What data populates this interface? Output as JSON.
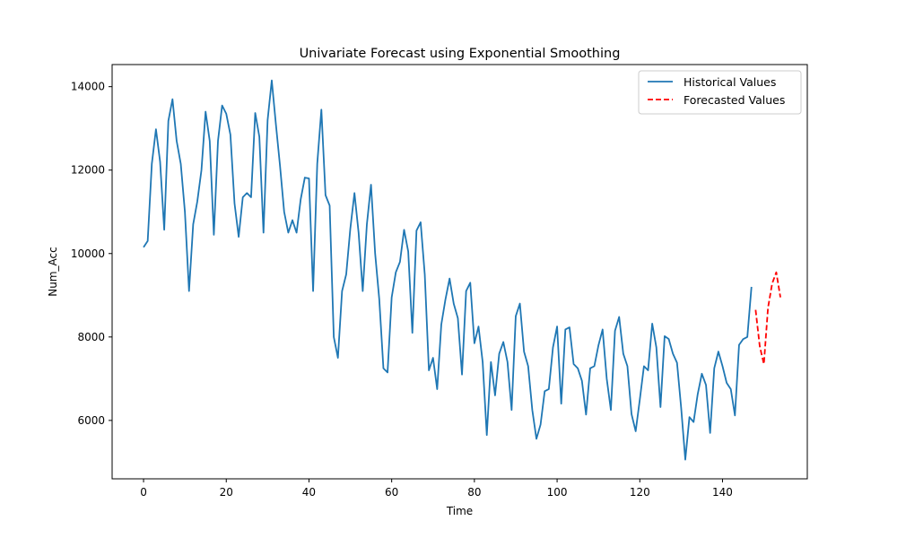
{
  "chart_data": {
    "type": "line",
    "title": "Univariate Forecast using Exponential Smoothing",
    "xlabel": "Time",
    "ylabel": "Num_Acc",
    "xlim": [
      -7.6,
      160.5
    ],
    "ylim": [
      4600,
      14530
    ],
    "xticks": [
      0,
      20,
      40,
      60,
      80,
      100,
      120,
      140
    ],
    "yticks": [
      6000,
      8000,
      10000,
      12000,
      14000
    ],
    "grid": false,
    "legend_position": "top-right",
    "series": [
      {
        "name": "Historical Values",
        "color": "#1f77b4",
        "style": "solid",
        "x_start": 0,
        "values": [
          10150,
          10300,
          12150,
          12980,
          12200,
          10570,
          13180,
          13700,
          12700,
          12150,
          11000,
          9100,
          10700,
          11250,
          12000,
          13400,
          12700,
          10450,
          12700,
          13550,
          13350,
          12850,
          11200,
          10400,
          11350,
          11450,
          11350,
          13370,
          12800,
          10500,
          13200,
          14150,
          13100,
          12100,
          11000,
          10500,
          10800,
          10500,
          11300,
          11820,
          11800,
          9100,
          12150,
          13450,
          11400,
          11150,
          8000,
          7500,
          9100,
          9500,
          10600,
          11450,
          10500,
          9100,
          10700,
          11650,
          10000,
          8900,
          7250,
          7150,
          8950,
          9550,
          9800,
          10570,
          10050,
          8100,
          10550,
          10750,
          9500,
          7200,
          7500,
          6750,
          8300,
          8900,
          9400,
          8800,
          8450,
          7100,
          9100,
          9300,
          7850,
          8250,
          7400,
          5650,
          7400,
          6600,
          7600,
          7880,
          7400,
          6250,
          8500,
          8800,
          7650,
          7300,
          6250,
          5560,
          5900,
          6700,
          6750,
          7750,
          8250,
          6400,
          8180,
          8230,
          7350,
          7250,
          6950,
          6140,
          7250,
          7300,
          7800,
          8180,
          7000,
          6250,
          8150,
          8480,
          7600,
          7300,
          6150,
          5740,
          6500,
          7300,
          7200,
          8320,
          7750,
          6320,
          8020,
          7950,
          7600,
          7380,
          6300,
          5060,
          6080,
          5960,
          6630,
          7120,
          6850,
          5700,
          7250,
          7650,
          7300,
          6900,
          6750,
          6120,
          7810,
          7950,
          8000,
          9200
        ]
      },
      {
        "name": "Forecasted Values",
        "color": "#ff0000",
        "style": "dashed",
        "x_start": 148,
        "values": [
          8650,
          7780,
          7350,
          8700,
          9280,
          9550,
          8950
        ]
      }
    ]
  }
}
